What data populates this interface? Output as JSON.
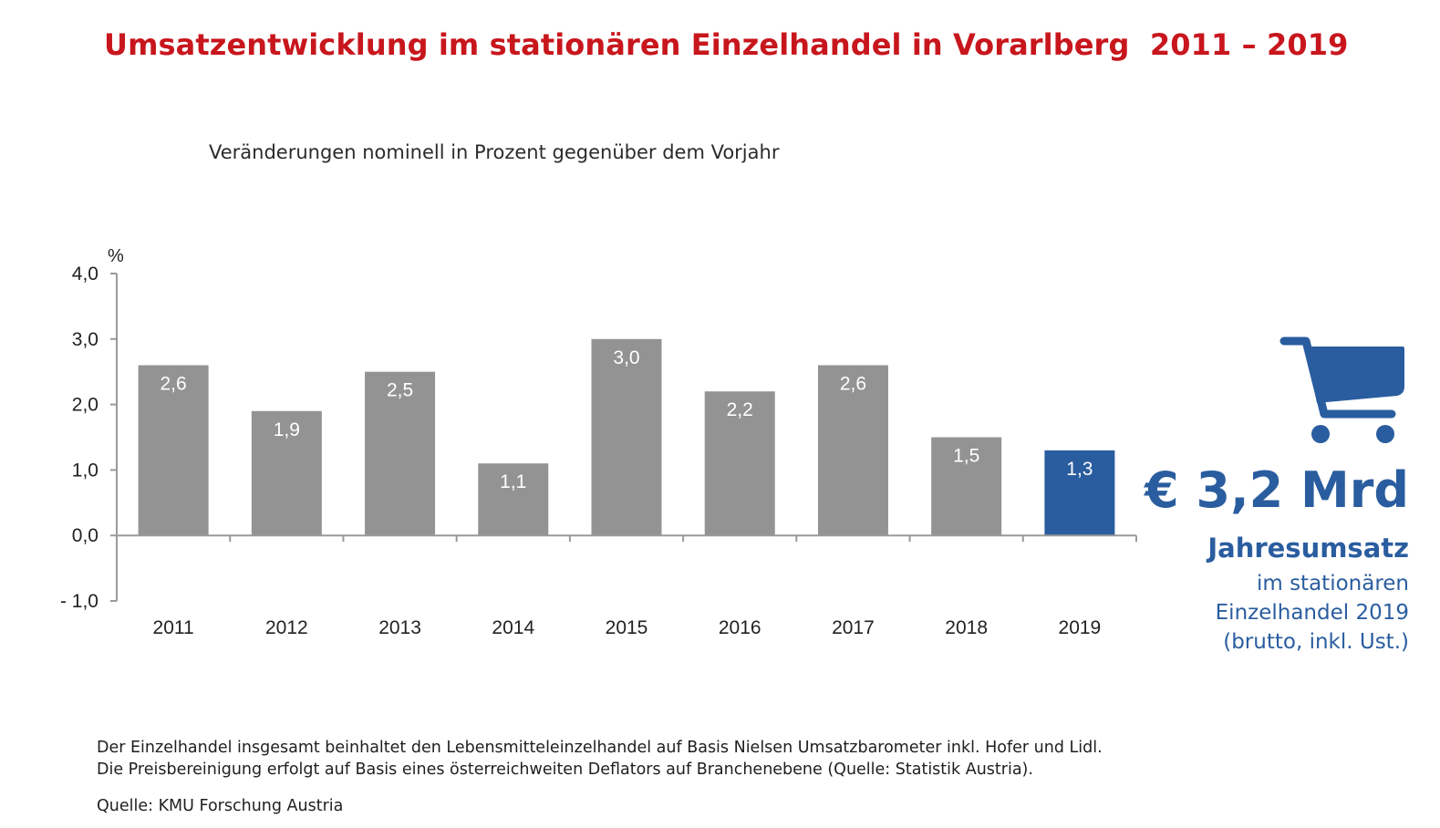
{
  "title": "Umsatzentwicklung im stationären Einzelhandel in Vorarlberg  2011 – 2019",
  "subtitle": "Veränderungen nominell in Prozent gegenüber dem Vorjahr",
  "chart_data": {
    "type": "bar",
    "categories": [
      "2011",
      "2012",
      "2013",
      "2014",
      "2015",
      "2016",
      "2017",
      "2018",
      "2019"
    ],
    "values": [
      2.6,
      1.9,
      2.5,
      1.1,
      3.0,
      2.2,
      2.6,
      1.5,
      1.3
    ],
    "data_labels": [
      "2,6",
      "1,9",
      "2,5",
      "1,1",
      "3,0",
      "2,2",
      "2,6",
      "1,5",
      "1,3"
    ],
    "ylabel": "%",
    "yticks": [
      4.0,
      3.0,
      2.0,
      1.0,
      0.0,
      -1.0
    ],
    "ytick_labels": [
      "4,0",
      "3,0",
      "2,0",
      "1,0",
      "0,0",
      "- 1,0"
    ],
    "ylim": [
      -1.0,
      4.0
    ],
    "grid": false,
    "legend": "none",
    "colors": {
      "bar": "#939393",
      "highlight": "#2a5d9f",
      "highlight_category": "2019",
      "axis": "#9a9a9a",
      "label_inside": "#ffffff",
      "tick_text": "#222222"
    }
  },
  "side_panel": {
    "icon": "shopping-cart-icon",
    "amount": "€ 3,2 Mrd",
    "label": "Jahresumsatz",
    "lines": [
      "im stationären",
      "Einzelhandel 2019",
      "(brutto, inkl. Ust.)"
    ],
    "color": "#2a5d9f"
  },
  "footnote": {
    "lines": [
      "Der Einzelhandel insgesamt beinhaltet den Lebensmitteleinzelhandel auf Basis Nielsen Umsatzbarometer inkl. Hofer und Lidl.",
      "Die Preisbereinigung erfolgt auf Basis eines österreichweiten Deflators auf Branchenebene (Quelle: Statistik Austria)."
    ],
    "source": "Quelle: KMU Forschung Austria"
  }
}
